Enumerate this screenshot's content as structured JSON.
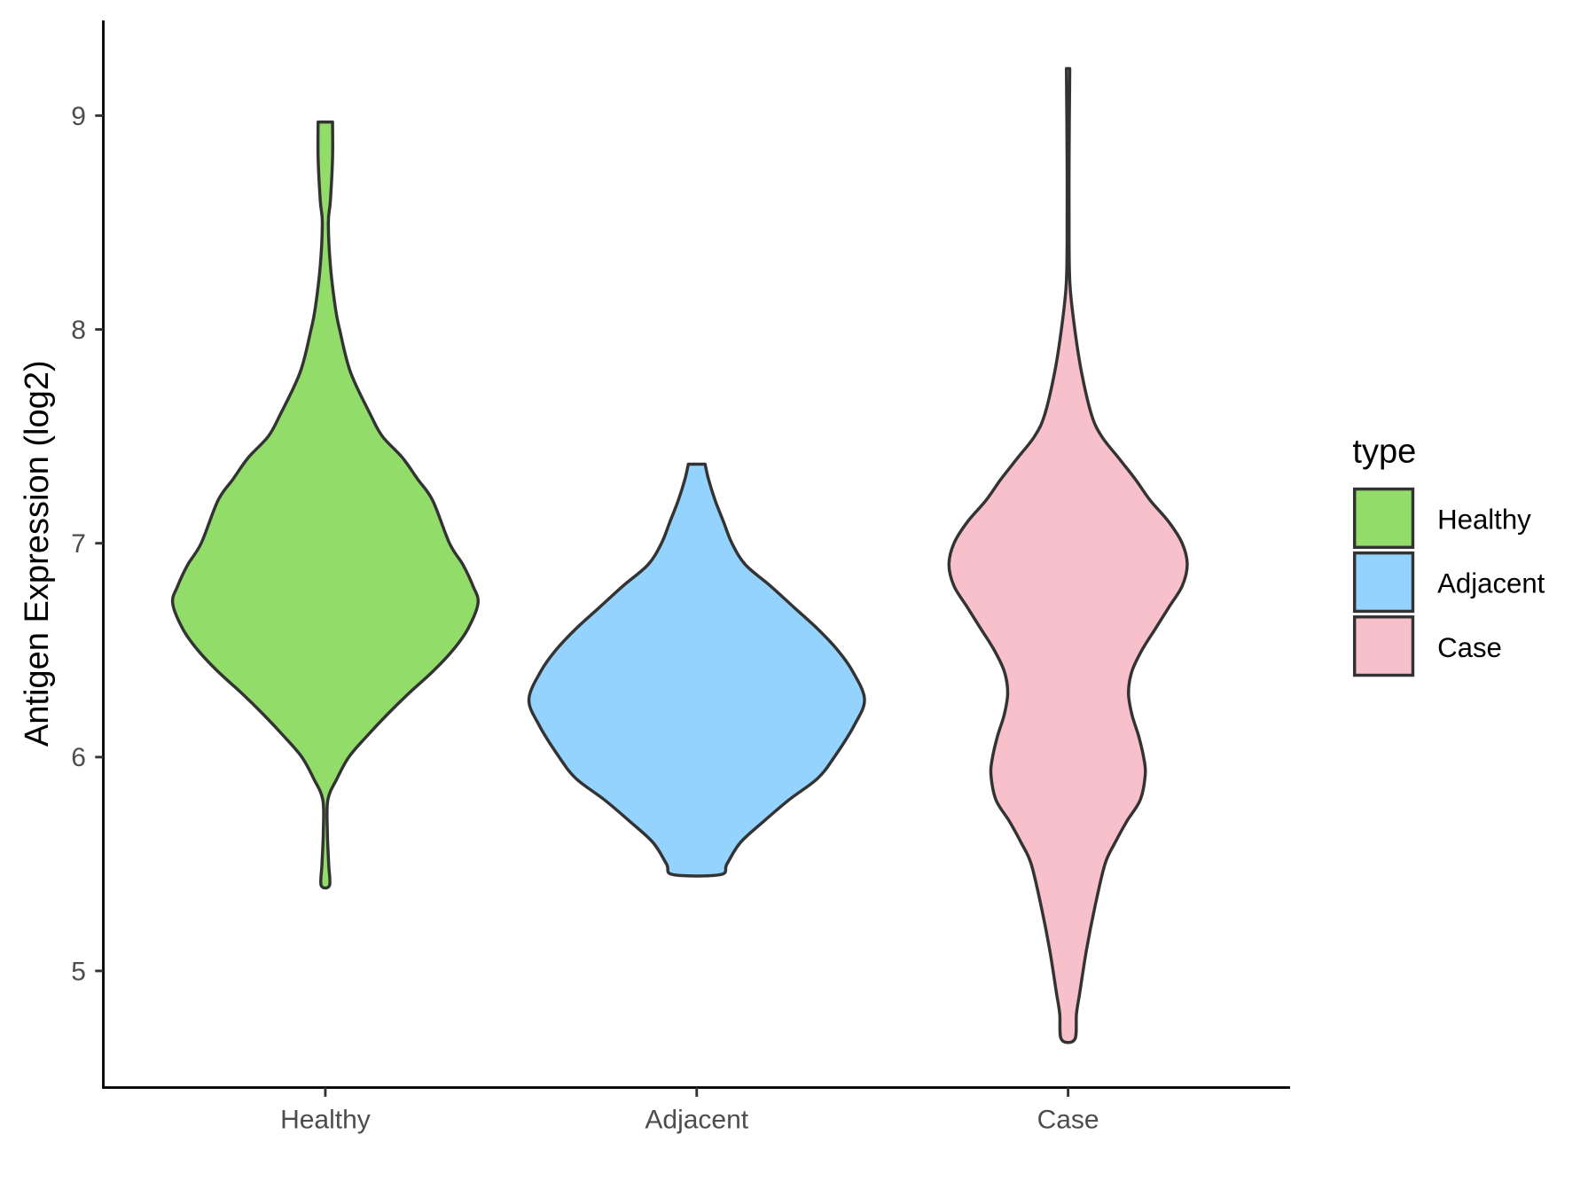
{
  "chart_data": {
    "type": "violin",
    "title": "",
    "xlabel": "",
    "ylabel": "Antigen Expression (log2)",
    "ylim": [
      4.45,
      9.45
    ],
    "yticks": [
      5,
      6,
      7,
      8,
      9
    ],
    "grid": false,
    "categories": [
      "Healthy",
      "Adjacent",
      "Case"
    ],
    "legend": {
      "title": "type",
      "position": "right",
      "entries": [
        "Healthy",
        "Adjacent",
        "Case"
      ]
    },
    "series": [
      {
        "name": "Healthy",
        "color": "#92DC6A",
        "min": 5.4,
        "max": 8.97,
        "profile": [
          [
            8.97,
            0.043
          ],
          [
            8.8,
            0.043
          ],
          [
            8.6,
            0.03
          ],
          [
            8.5,
            0.018
          ],
          [
            8.3,
            0.03
          ],
          [
            8.1,
            0.06
          ],
          [
            8.0,
            0.085
          ],
          [
            7.8,
            0.15
          ],
          [
            7.6,
            0.27
          ],
          [
            7.5,
            0.34
          ],
          [
            7.4,
            0.46
          ],
          [
            7.3,
            0.55
          ],
          [
            7.2,
            0.64
          ],
          [
            7.0,
            0.74
          ],
          [
            6.9,
            0.82
          ],
          [
            6.8,
            0.88
          ],
          [
            6.72,
            0.91
          ],
          [
            6.6,
            0.85
          ],
          [
            6.5,
            0.76
          ],
          [
            6.4,
            0.64
          ],
          [
            6.3,
            0.5
          ],
          [
            6.2,
            0.37
          ],
          [
            6.1,
            0.25
          ],
          [
            6.0,
            0.14
          ],
          [
            5.9,
            0.07
          ],
          [
            5.8,
            0.015
          ],
          [
            5.65,
            0.012
          ],
          [
            5.5,
            0.02
          ],
          [
            5.4,
            0.025
          ]
        ]
      },
      {
        "name": "Adjacent",
        "color": "#93D3FE",
        "min": 5.45,
        "max": 7.37,
        "profile": [
          [
            7.37,
            0.05
          ],
          [
            7.3,
            0.07
          ],
          [
            7.2,
            0.11
          ],
          [
            7.1,
            0.16
          ],
          [
            7.0,
            0.21
          ],
          [
            6.9,
            0.29
          ],
          [
            6.8,
            0.44
          ],
          [
            6.7,
            0.58
          ],
          [
            6.6,
            0.72
          ],
          [
            6.5,
            0.84
          ],
          [
            6.4,
            0.93
          ],
          [
            6.27,
            1.0
          ],
          [
            6.15,
            0.94
          ],
          [
            6.0,
            0.82
          ],
          [
            5.9,
            0.72
          ],
          [
            5.8,
            0.55
          ],
          [
            5.7,
            0.4
          ],
          [
            5.6,
            0.26
          ],
          [
            5.5,
            0.18
          ],
          [
            5.45,
            0.14
          ]
        ]
      },
      {
        "name": "Case",
        "color": "#F7C0CB",
        "min": 4.68,
        "max": 9.22,
        "profile": [
          [
            9.22,
            0.01
          ],
          [
            8.8,
            0.006
          ],
          [
            8.4,
            0.006
          ],
          [
            8.2,
            0.012
          ],
          [
            8.0,
            0.04
          ],
          [
            7.8,
            0.08
          ],
          [
            7.6,
            0.14
          ],
          [
            7.5,
            0.2
          ],
          [
            7.4,
            0.3
          ],
          [
            7.3,
            0.4
          ],
          [
            7.2,
            0.49
          ],
          [
            7.1,
            0.6
          ],
          [
            7.0,
            0.68
          ],
          [
            6.9,
            0.71
          ],
          [
            6.8,
            0.68
          ],
          [
            6.7,
            0.6
          ],
          [
            6.6,
            0.52
          ],
          [
            6.5,
            0.44
          ],
          [
            6.4,
            0.38
          ],
          [
            6.3,
            0.36
          ],
          [
            6.2,
            0.38
          ],
          [
            6.1,
            0.42
          ],
          [
            6.0,
            0.45
          ],
          [
            5.92,
            0.46
          ],
          [
            5.8,
            0.43
          ],
          [
            5.7,
            0.35
          ],
          [
            5.6,
            0.28
          ],
          [
            5.5,
            0.22
          ],
          [
            5.3,
            0.16
          ],
          [
            5.1,
            0.11
          ],
          [
            4.9,
            0.07
          ],
          [
            4.8,
            0.05
          ],
          [
            4.68,
            0.04
          ]
        ]
      }
    ]
  }
}
